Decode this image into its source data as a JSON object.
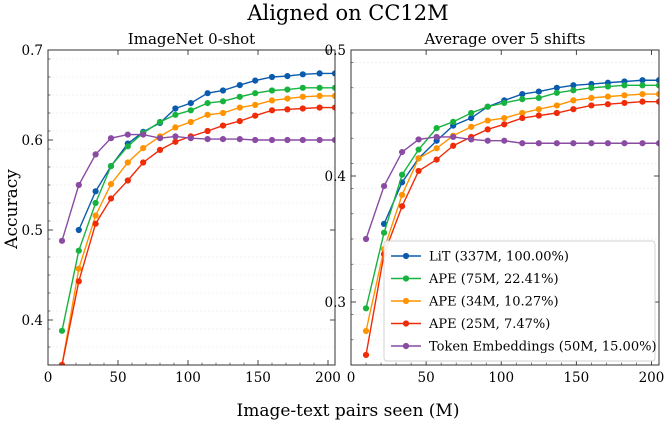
{
  "suptitle": "Aligned on CC12M",
  "xlabel": "Image-text pairs seen (M)",
  "ylabel": "Accuracy",
  "chart_data": [
    {
      "type": "line",
      "title": "ImageNet 0-shot",
      "xlim": [
        0,
        205
      ],
      "ylim": [
        0.35,
        0.7
      ],
      "xticks": [
        0,
        50,
        100,
        150,
        200
      ],
      "yticks": [
        0.4,
        0.5,
        0.6,
        0.7
      ],
      "ytick_labels": [
        "0.4",
        "0.5",
        "0.6",
        "0.7"
      ],
      "grid": "horizontal",
      "x": [
        10,
        22,
        34,
        45,
        57,
        68,
        80,
        91,
        102,
        114,
        125,
        137,
        148,
        160,
        171,
        182,
        194,
        205
      ],
      "series": [
        {
          "name": "LiT (337M, 100.00%)",
          "color": "#0b5bad",
          "values": [
            null,
            0.5,
            0.543,
            0.571,
            0.596,
            0.609,
            0.619,
            0.635,
            0.641,
            0.652,
            0.655,
            0.661,
            0.666,
            0.67,
            0.671,
            0.673,
            0.674,
            0.674
          ]
        },
        {
          "name": "APE (75M, 22.41%)",
          "color": "#18b33f",
          "values": [
            0.388,
            0.477,
            0.53,
            0.571,
            0.593,
            0.608,
            0.62,
            0.628,
            0.633,
            0.641,
            0.643,
            0.648,
            0.652,
            0.655,
            0.656,
            0.658,
            0.658,
            0.658
          ]
        },
        {
          "name": "APE (34M, 10.27%)",
          "color": "#ff9300",
          "values": [
            0.35,
            0.457,
            0.516,
            0.551,
            0.575,
            0.591,
            0.604,
            0.614,
            0.62,
            0.628,
            0.63,
            0.636,
            0.639,
            0.644,
            0.646,
            0.648,
            0.649,
            0.649
          ]
        },
        {
          "name": "APE (25M, 7.47%)",
          "color": "#ef2b08",
          "values": [
            0.35,
            0.443,
            0.507,
            0.535,
            0.555,
            0.575,
            0.589,
            0.598,
            0.604,
            0.61,
            0.616,
            0.621,
            0.627,
            0.633,
            0.634,
            0.635,
            0.636,
            0.636
          ]
        },
        {
          "name": "Token Embeddings (50M, 15.00%)",
          "color": "#8a4ba2",
          "values": [
            0.488,
            0.55,
            0.584,
            0.602,
            0.606,
            0.606,
            0.602,
            0.604,
            0.602,
            0.601,
            0.601,
            0.601,
            0.6,
            0.6,
            0.6,
            0.6,
            0.6,
            0.6
          ]
        }
      ]
    },
    {
      "type": "line",
      "title": "Average over 5 shifts",
      "xlim": [
        0,
        205
      ],
      "ylim": [
        0.25,
        0.5
      ],
      "xticks": [
        0,
        50,
        100,
        150,
        200
      ],
      "yticks": [
        0.3,
        0.4,
        0.5
      ],
      "ytick_labels": [
        "0.3",
        "0.4",
        "0.5"
      ],
      "grid": "horizontal",
      "x": [
        10,
        22,
        34,
        45,
        57,
        68,
        80,
        91,
        102,
        114,
        125,
        137,
        148,
        160,
        171,
        182,
        194,
        205
      ],
      "legend": "lower-right",
      "series": [
        {
          "name": "LiT (337M, 100.00%)",
          "color": "#0b5bad",
          "values": [
            null,
            0.362,
            0.395,
            0.414,
            0.428,
            0.44,
            0.446,
            0.455,
            0.46,
            0.465,
            0.467,
            0.47,
            0.472,
            0.473,
            0.474,
            0.475,
            0.476,
            0.476
          ]
        },
        {
          "name": "APE (75M, 22.41%)",
          "color": "#18b33f",
          "values": [
            0.295,
            0.355,
            0.401,
            0.421,
            0.438,
            0.443,
            0.45,
            0.455,
            0.458,
            0.461,
            0.462,
            0.466,
            0.468,
            0.47,
            0.471,
            0.472,
            0.472,
            0.472
          ]
        },
        {
          "name": "APE (34M, 10.27%)",
          "color": "#ff9300",
          "values": [
            0.277,
            0.342,
            0.385,
            0.414,
            0.422,
            0.432,
            0.439,
            0.444,
            0.446,
            0.45,
            0.453,
            0.456,
            0.46,
            0.462,
            0.463,
            0.464,
            0.465,
            0.465
          ]
        },
        {
          "name": "APE (25M, 7.47%)",
          "color": "#ef2b08",
          "values": [
            0.258,
            0.338,
            0.376,
            0.404,
            0.413,
            0.424,
            0.431,
            0.437,
            0.441,
            0.446,
            0.448,
            0.45,
            0.453,
            0.456,
            0.457,
            0.458,
            0.459,
            0.459
          ]
        },
        {
          "name": "Token Embeddings (50M, 15.00%)",
          "color": "#8a4ba2",
          "values": [
            0.35,
            0.392,
            0.419,
            0.429,
            0.431,
            0.431,
            0.429,
            0.428,
            0.428,
            0.426,
            0.426,
            0.426,
            0.426,
            0.426,
            0.426,
            0.426,
            0.426,
            0.426
          ]
        }
      ]
    }
  ]
}
